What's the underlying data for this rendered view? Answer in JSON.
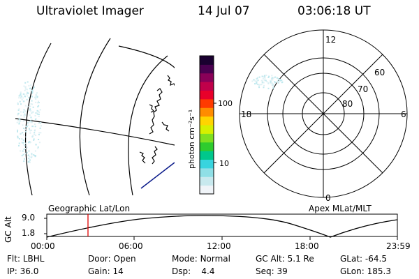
{
  "header": {
    "instrument": "Ultraviolet Imager",
    "date": "14 Jul 07",
    "time": "03:06:18 UT"
  },
  "colorbar": {
    "unit_label": "photon cm⁻²s⁻¹",
    "ticks": [
      "100",
      "10"
    ],
    "colors": [
      "#f0f4f8",
      "#c8e9ee",
      "#8fdfe6",
      "#38d4de",
      "#00c88c",
      "#2ecc2e",
      "#7fe020",
      "#d6f000",
      "#ffd400",
      "#ff8c00",
      "#ff3a00",
      "#e8002a",
      "#c0004a",
      "#8a0058",
      "#4a0050",
      "#1a0030"
    ]
  },
  "polar_plot": {
    "mlt_labels": [
      "12",
      "18",
      "6",
      "0"
    ],
    "lat_labels": [
      "60",
      "70",
      "80"
    ]
  },
  "map": {
    "label_left": "Geographic Lat/Lon",
    "label_right": "Apex MLat/MLT"
  },
  "altitude_plot": {
    "axis_label": "GC Alt",
    "y_ticks": [
      "9.0",
      "1.8"
    ],
    "x_ticks": [
      "00:00",
      "06:00",
      "12:00",
      "18:00",
      "23:59"
    ]
  },
  "status": {
    "row1": [
      {
        "key": "Flt:",
        "value": "LBHL"
      },
      {
        "key": "Door:",
        "value": "Open"
      },
      {
        "key": "Mode:",
        "value": "Normal"
      },
      {
        "key": "GC Alt:",
        "value": "5.1 Re"
      },
      {
        "key": "GLat:",
        "value": "-64.5"
      }
    ],
    "row2": [
      {
        "key": "IP:",
        "value": "36.0"
      },
      {
        "key": "Gain:",
        "value": "14"
      },
      {
        "key": "Dsp:",
        "value": "4.4"
      },
      {
        "key": "Seq:",
        "value": "39"
      },
      {
        "key": "GLon:",
        "value": "185.3"
      }
    ]
  }
}
